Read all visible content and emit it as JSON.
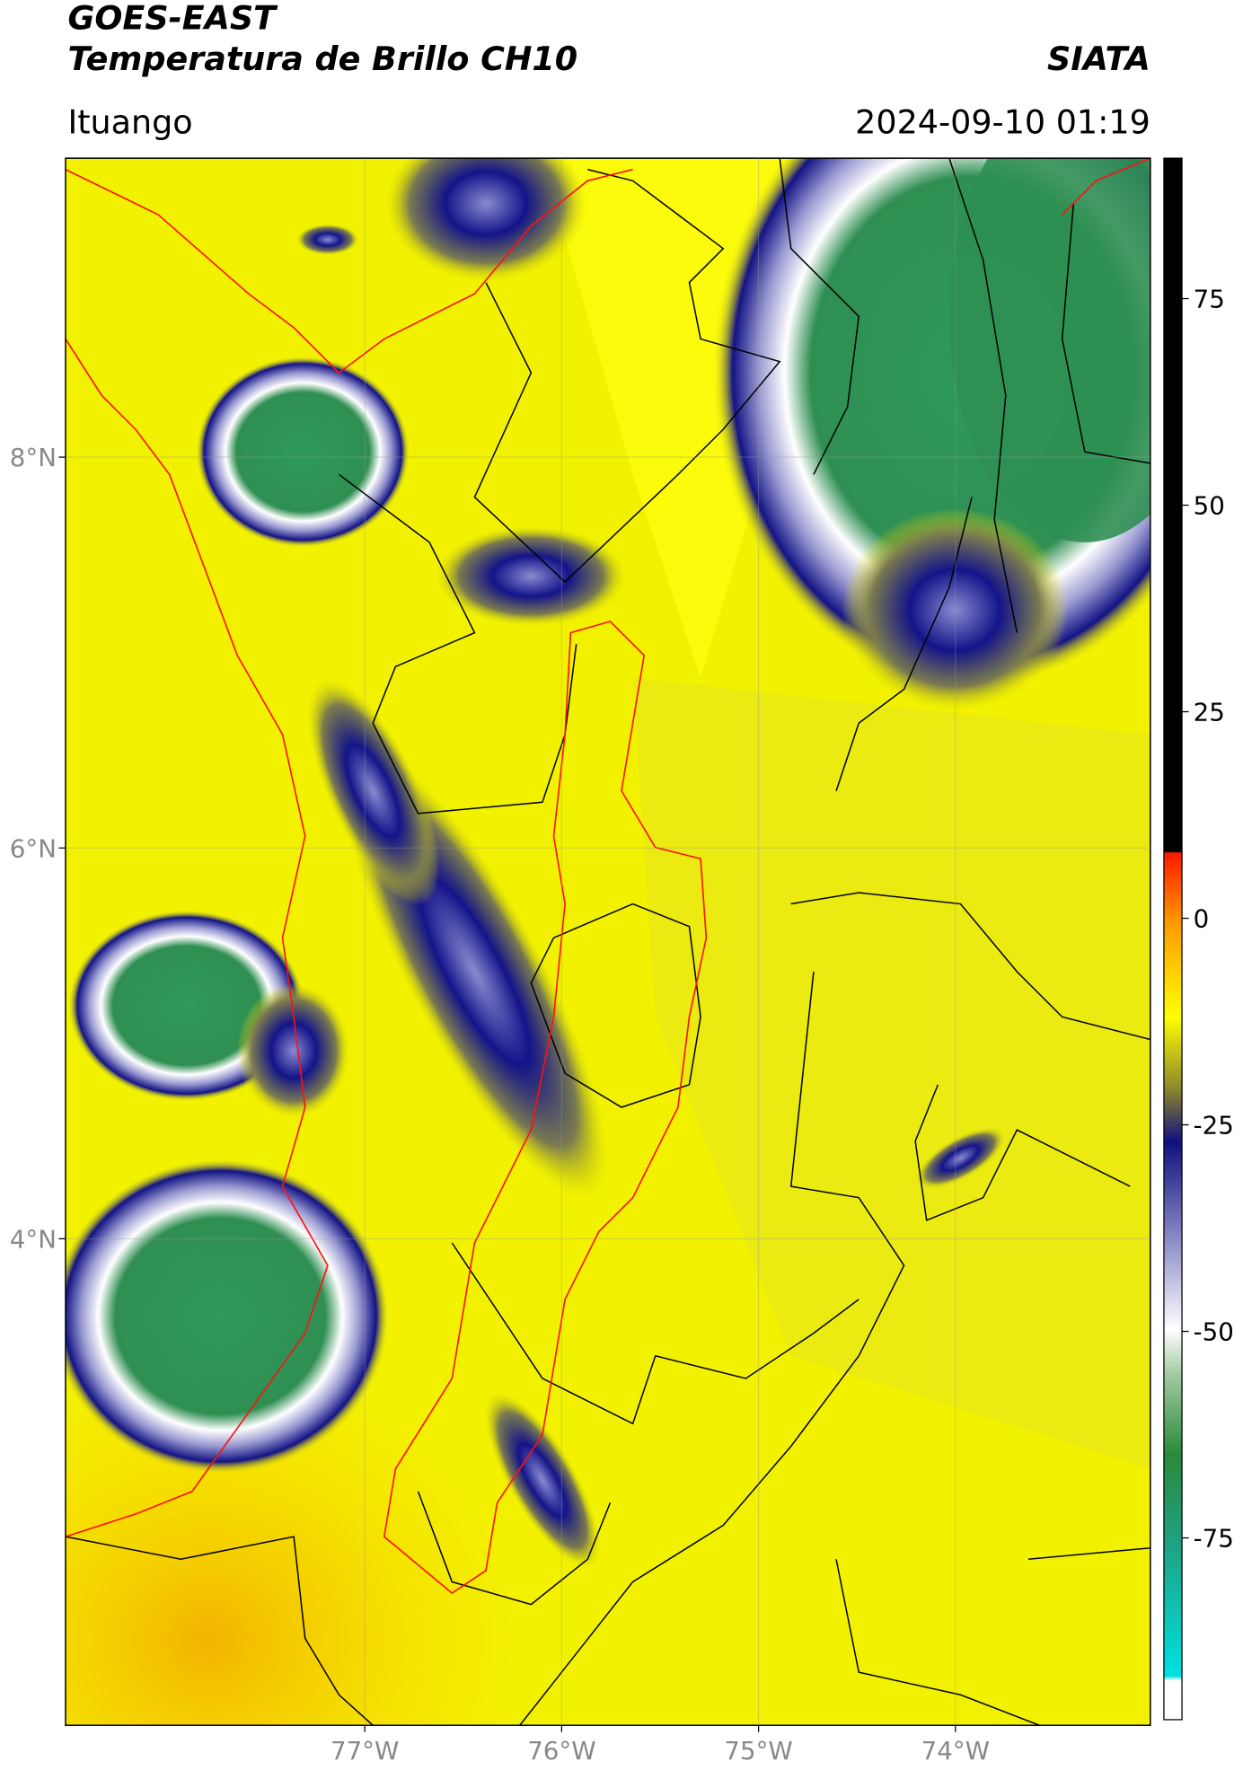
{
  "header": {
    "title": "GOES-EAST",
    "subtitle": "Temperatura de Brillo CH10",
    "source": "SIATA",
    "location": "Ituango",
    "timestamp": "2024-09-10 01:19"
  },
  "map": {
    "xlim": [
      -78.52,
      -73.01
    ],
    "ylim": [
      1.51,
      9.53
    ],
    "xticks": [
      {
        "value": -77,
        "label": "77°W"
      },
      {
        "value": -76,
        "label": "76°W"
      },
      {
        "value": -75,
        "label": "75°W"
      },
      {
        "value": -74,
        "label": "74°W"
      }
    ],
    "yticks": [
      {
        "value": 8,
        "label": "8°N"
      },
      {
        "value": 6,
        "label": "6°N"
      },
      {
        "value": 4,
        "label": "4°N"
      }
    ]
  },
  "colorbar": {
    "clim": [
      -97,
      92
    ],
    "ticks": [
      75,
      50,
      25,
      0,
      -25,
      -50,
      -75
    ]
  }
}
